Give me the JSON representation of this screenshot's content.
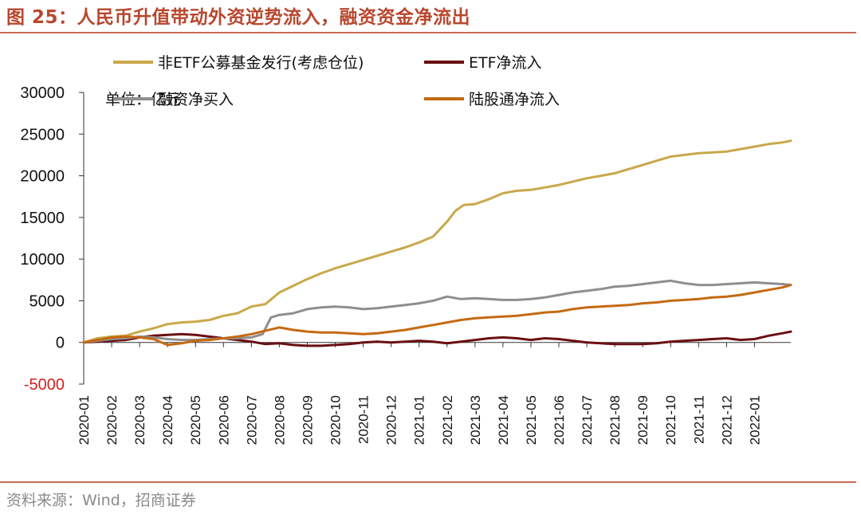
{
  "title": "图 25：人民币升值带动外资逆势流入，融资资金净流出",
  "source": "资料来源：Wind，招商证券",
  "chart_data": {
    "type": "line",
    "unit_label": "单位：亿元",
    "ylim": [
      -5000,
      30000
    ],
    "y_ticks": [
      30000,
      25000,
      20000,
      15000,
      10000,
      5000,
      0,
      -5000
    ],
    "y_tick_labels": [
      "30000",
      "25000",
      "20000",
      "15000",
      "10000",
      "5000",
      "0",
      "-5000"
    ],
    "x_ticks": [
      "2020-01",
      "2020-02",
      "2020-03",
      "2020-04",
      "2020-05",
      "2020-06",
      "2020-07",
      "2020-08",
      "2020-09",
      "2020-10",
      "2020-11",
      "2020-12",
      "2021-01",
      "2021-02",
      "2021-03",
      "2021-04",
      "2021-05",
      "2021-06",
      "2021-07",
      "2021-08",
      "2021-09",
      "2021-10",
      "2021-11",
      "2021-12",
      "2022-01"
    ],
    "x_range_months": [
      0,
      25.3
    ],
    "series": [
      {
        "name": "非ETF公募基金发行(考虑仓位)",
        "color": "#c9a84a",
        "x": [
          0,
          0.5,
          1,
          1.5,
          2,
          2.5,
          3,
          3.5,
          4,
          4.5,
          5,
          5.5,
          6,
          6.5,
          7,
          7.5,
          8,
          8.5,
          9,
          9.5,
          10,
          10.5,
          11,
          11.5,
          12,
          12.5,
          13,
          13.3,
          13.6,
          14,
          14.5,
          15,
          15.5,
          16,
          16.5,
          17,
          17.5,
          18,
          18.5,
          19,
          19.5,
          20,
          20.5,
          21,
          21.5,
          22,
          22.5,
          23,
          23.5,
          24,
          24.5,
          25,
          25.3
        ],
        "values": [
          0,
          500,
          700,
          800,
          1300,
          1700,
          2200,
          2400,
          2500,
          2700,
          3200,
          3500,
          4300,
          4600,
          6000,
          6800,
          7600,
          8300,
          8900,
          9400,
          9900,
          10400,
          10900,
          11400,
          12000,
          12700,
          14500,
          15800,
          16500,
          16600,
          17200,
          17900,
          18200,
          18300,
          18600,
          18900,
          19300,
          19700,
          20000,
          20300,
          20800,
          21300,
          21800,
          22300,
          22500,
          22700,
          22800,
          22900,
          23200,
          23500,
          23800,
          24000,
          24200
        ]
      },
      {
        "name": "ETF净流入",
        "color": "#6b0f12",
        "x": [
          0,
          0.5,
          1,
          1.5,
          2,
          2.5,
          3,
          3.5,
          4,
          4.5,
          5,
          5.5,
          6,
          6.5,
          7,
          7.5,
          8,
          8.5,
          9,
          9.5,
          10,
          10.5,
          11,
          11.5,
          12,
          12.5,
          13,
          13.5,
          14,
          14.5,
          15,
          15.5,
          16,
          16.5,
          17,
          17.5,
          18,
          18.5,
          19,
          19.5,
          20,
          20.5,
          21,
          21.5,
          22,
          22.5,
          23,
          23.5,
          24,
          24.5,
          25,
          25.3
        ],
        "values": [
          0,
          100,
          200,
          300,
          600,
          800,
          900,
          1000,
          900,
          700,
          500,
          300,
          100,
          -200,
          -100,
          -300,
          -400,
          -400,
          -300,
          -200,
          0,
          100,
          0,
          100,
          200,
          100,
          -100,
          100,
          300,
          500,
          600,
          500,
          300,
          500,
          400,
          200,
          0,
          -100,
          -200,
          -200,
          -200,
          -100,
          100,
          200,
          300,
          400,
          500,
          300,
          400,
          800,
          1100,
          1300
        ]
      },
      {
        "name": "融资净买入",
        "color": "#8e8e8e",
        "x": [
          0,
          0.5,
          1,
          1.5,
          2,
          2.5,
          3,
          3.5,
          4,
          4.5,
          5,
          5.5,
          6,
          6.4,
          6.7,
          7,
          7.5,
          8,
          8.5,
          9,
          9.5,
          10,
          10.5,
          11,
          11.5,
          12,
          12.5,
          13,
          13.5,
          14,
          14.5,
          15,
          15.5,
          16,
          16.5,
          17,
          17.5,
          18,
          18.5,
          19,
          19.5,
          20,
          20.5,
          21,
          21.5,
          22,
          22.5,
          23,
          23.5,
          24,
          24.5,
          25,
          25.3
        ],
        "values": [
          0,
          200,
          400,
          500,
          700,
          600,
          400,
          300,
          300,
          400,
          500,
          500,
          600,
          1000,
          3000,
          3300,
          3500,
          4000,
          4200,
          4300,
          4200,
          4000,
          4100,
          4300,
          4500,
          4700,
          5000,
          5500,
          5200,
          5300,
          5200,
          5100,
          5100,
          5200,
          5400,
          5700,
          6000,
          6200,
          6400,
          6700,
          6800,
          7000,
          7200,
          7400,
          7100,
          6900,
          6900,
          7000,
          7100,
          7200,
          7100,
          7000,
          6900
        ]
      },
      {
        "name": "陆股通净流入",
        "color": "#c46a12",
        "x": [
          0,
          0.5,
          1,
          1.5,
          2,
          2.5,
          3,
          3.5,
          4,
          4.5,
          5,
          5.5,
          6,
          6.5,
          7,
          7.5,
          8,
          8.5,
          9,
          9.5,
          10,
          10.5,
          11,
          11.5,
          12,
          12.5,
          13,
          13.5,
          14,
          14.5,
          15,
          15.5,
          16,
          16.5,
          17,
          17.5,
          18,
          18.5,
          19,
          19.5,
          20,
          20.5,
          21,
          21.5,
          22,
          22.5,
          23,
          23.5,
          24,
          24.5,
          25,
          25.3
        ],
        "values": [
          0,
          300,
          600,
          700,
          600,
          400,
          -300,
          -100,
          200,
          300,
          500,
          700,
          1000,
          1400,
          1800,
          1500,
          1300,
          1200,
          1200,
          1100,
          1000,
          1100,
          1300,
          1500,
          1800,
          2100,
          2400,
          2700,
          2900,
          3000,
          3100,
          3200,
          3400,
          3600,
          3700,
          4000,
          4200,
          4300,
          4400,
          4500,
          4700,
          4800,
          5000,
          5100,
          5200,
          5400,
          5500,
          5700,
          6000,
          6300,
          6600,
          6900
        ]
      }
    ]
  }
}
